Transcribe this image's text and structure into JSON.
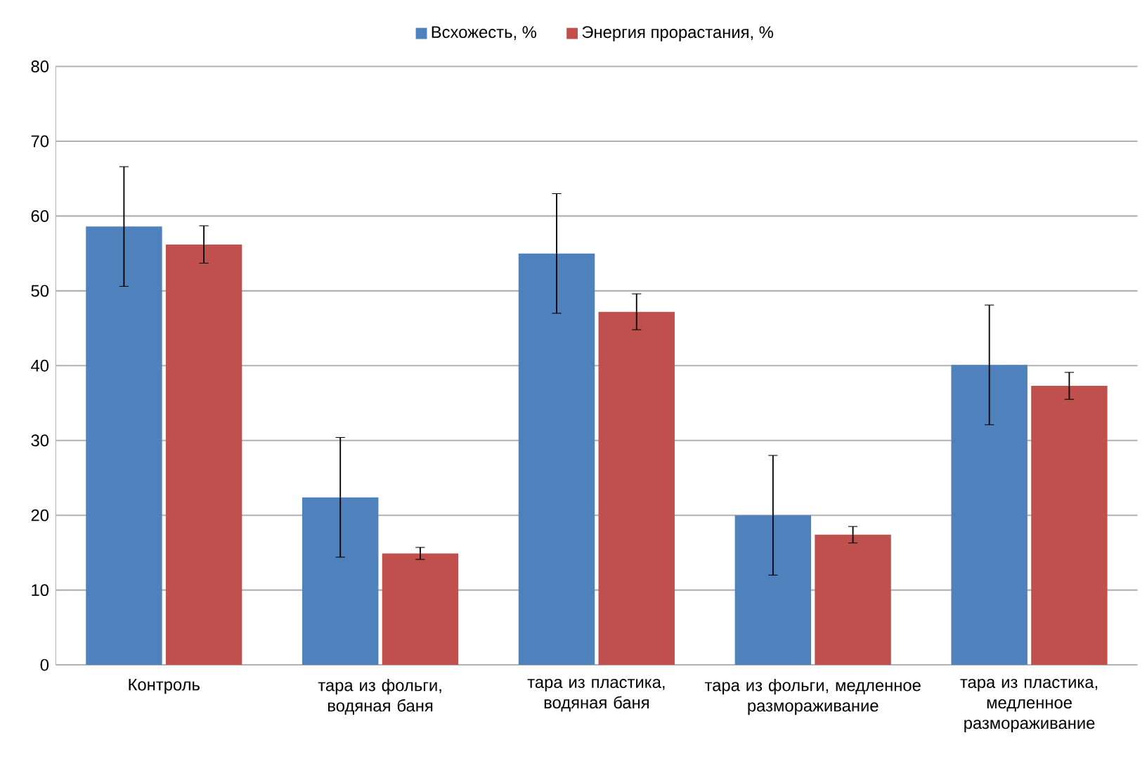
{
  "chart_data": {
    "type": "bar",
    "categories": [
      "Контроль",
      "тара из фольги, водяная  баня",
      "тара из пластика, водяная  баня",
      "тара из фольги, медленное размораживание",
      "тара из пластика, медленное размораживание"
    ],
    "series": [
      {
        "name": "Всхожесть, %",
        "color": "#4f81bd",
        "values": [
          58.6,
          22.4,
          55.0,
          20.0,
          40.1
        ],
        "errors": [
          8,
          8,
          8,
          8,
          8
        ]
      },
      {
        "name": "Энергия прорастания,  %",
        "color": "#c0504d",
        "values": [
          56.2,
          14.9,
          47.2,
          17.4,
          37.3
        ],
        "errors": [
          2.5,
          0.8,
          2.4,
          1.1,
          1.8
        ]
      }
    ],
    "ylim": [
      0,
      80
    ],
    "yticks": [
      0,
      10,
      20,
      30,
      40,
      50,
      60,
      70,
      80
    ],
    "grid": "y",
    "legend": "top"
  }
}
